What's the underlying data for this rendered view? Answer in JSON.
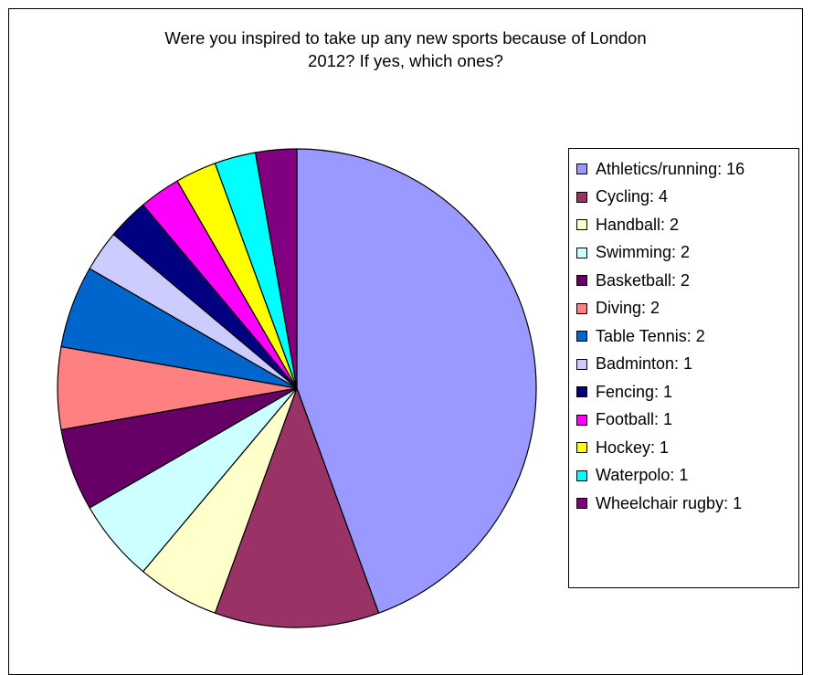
{
  "chart_data": {
    "type": "pie",
    "title_lines": [
      "Were you inspired to take up any new sports because of London",
      "2012? If yes, which ones?"
    ],
    "legend_position": "right",
    "slices": [
      {
        "label": "Athletics/running: 16",
        "category": "Athletics/running",
        "value": 16,
        "color": "#9999ff"
      },
      {
        "label": "Cycling: 4",
        "category": "Cycling",
        "value": 4,
        "color": "#993366"
      },
      {
        "label": "Handball: 2",
        "category": "Handball",
        "value": 2,
        "color": "#ffffcc"
      },
      {
        "label": "Swimming: 2",
        "category": "Swimming",
        "value": 2,
        "color": "#ccffff"
      },
      {
        "label": "Basketball: 2",
        "category": "Basketball",
        "value": 2,
        "color": "#660066"
      },
      {
        "label": "Diving: 2",
        "category": "Diving",
        "value": 2,
        "color": "#ff8080"
      },
      {
        "label": "Table Tennis: 2",
        "category": "Table Tennis",
        "value": 2,
        "color": "#0066cc"
      },
      {
        "label": "Badminton: 1",
        "category": "Badminton",
        "value": 1,
        "color": "#ccccff"
      },
      {
        "label": "Fencing: 1",
        "category": "Fencing",
        "value": 1,
        "color": "#000080"
      },
      {
        "label": "Football: 1",
        "category": "Football",
        "value": 1,
        "color": "#ff00ff"
      },
      {
        "label": "Hockey: 1",
        "category": "Hockey",
        "value": 1,
        "color": "#ffff00"
      },
      {
        "label": "Waterpolo: 1",
        "category": "Waterpolo",
        "value": 1,
        "color": "#00ffff"
      },
      {
        "label": "Wheelchair rugby: 1",
        "category": "Wheelchair rugby",
        "value": 1,
        "color": "#800080"
      }
    ]
  }
}
